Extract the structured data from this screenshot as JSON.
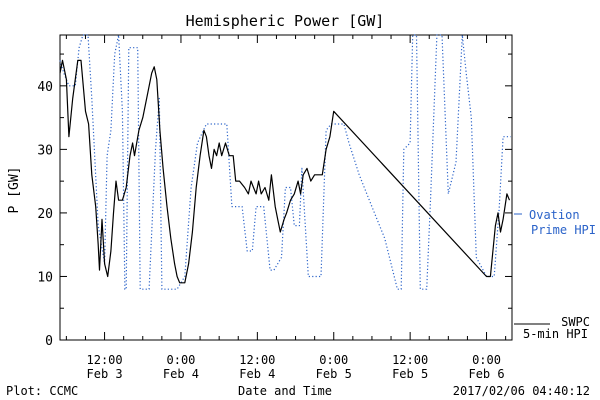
{
  "chart_data": {
    "type": "line",
    "title": "Hemispheric Power [GW]",
    "xlabel": "Date and Time",
    "ylabel": "P [GW]",
    "ylim": [
      0,
      48
    ],
    "xlim_hours": [
      -19,
      52
    ],
    "y_ticks": [
      0,
      10,
      20,
      30,
      40
    ],
    "x_ticks": [
      {
        "hour": -12,
        "time": "12:00",
        "date": "Feb 3"
      },
      {
        "hour": 0,
        "time": "0:00",
        "date": "Feb 4"
      },
      {
        "hour": 12,
        "time": "12:00",
        "date": "Feb 4"
      },
      {
        "hour": 24,
        "time": "0:00",
        "date": "Feb 5"
      },
      {
        "hour": 36,
        "time": "12:00",
        "date": "Feb 5"
      },
      {
        "hour": 48,
        "time": "0:00",
        "date": "Feb 6"
      }
    ],
    "series": [
      {
        "name": "SWPC 5-min HPI",
        "label_lines": [
          "SWPC",
          "5-min HPI"
        ],
        "color": "#000000",
        "style": "solid",
        "points": [
          [
            -19,
            42
          ],
          [
            -18.6,
            44
          ],
          [
            -18,
            41
          ],
          [
            -17.6,
            32
          ],
          [
            -17,
            38
          ],
          [
            -16.2,
            44
          ],
          [
            -15.7,
            44
          ],
          [
            -15,
            36
          ],
          [
            -14.5,
            34
          ],
          [
            -14,
            26
          ],
          [
            -13.4,
            21
          ],
          [
            -13,
            15
          ],
          [
            -12.8,
            11
          ],
          [
            -12.4,
            19
          ],
          [
            -12,
            12
          ],
          [
            -11.5,
            10
          ],
          [
            -11,
            14
          ],
          [
            -10.6,
            20
          ],
          [
            -10.2,
            25
          ],
          [
            -9.8,
            22
          ],
          [
            -9.2,
            22
          ],
          [
            -8.6,
            24
          ],
          [
            -8,
            29
          ],
          [
            -7.6,
            31
          ],
          [
            -7.3,
            29
          ],
          [
            -6.6,
            33
          ],
          [
            -6,
            35
          ],
          [
            -5.2,
            39
          ],
          [
            -4.6,
            42
          ],
          [
            -4.2,
            43
          ],
          [
            -3.8,
            41
          ],
          [
            -3.3,
            33
          ],
          [
            -2.8,
            27
          ],
          [
            -2.2,
            21
          ],
          [
            -1.6,
            16
          ],
          [
            -1,
            12
          ],
          [
            -0.6,
            10
          ],
          [
            -0.2,
            9
          ],
          [
            0.6,
            9
          ],
          [
            1.2,
            12
          ],
          [
            1.8,
            17
          ],
          [
            2.4,
            24
          ],
          [
            3,
            29
          ],
          [
            3.6,
            33
          ],
          [
            4,
            32
          ],
          [
            4.4,
            29
          ],
          [
            4.8,
            27
          ],
          [
            5.2,
            30
          ],
          [
            5.6,
            29
          ],
          [
            6,
            31
          ],
          [
            6.4,
            29
          ],
          [
            7,
            31
          ],
          [
            7.6,
            29
          ],
          [
            8.2,
            29
          ],
          [
            8.6,
            25
          ],
          [
            9.2,
            25
          ],
          [
            10,
            24
          ],
          [
            10.6,
            23
          ],
          [
            11,
            25
          ],
          [
            11.4,
            24
          ],
          [
            11.8,
            23
          ],
          [
            12.2,
            25
          ],
          [
            12.6,
            23
          ],
          [
            13.2,
            24
          ],
          [
            13.8,
            22
          ],
          [
            14.2,
            26
          ],
          [
            14.8,
            21
          ],
          [
            15.2,
            19
          ],
          [
            15.6,
            17
          ],
          [
            16.2,
            19
          ],
          [
            16.6,
            20
          ],
          [
            17.2,
            22
          ],
          [
            17.8,
            23
          ],
          [
            18.4,
            25
          ],
          [
            18.8,
            23
          ],
          [
            19.2,
            26
          ],
          [
            19.8,
            27
          ],
          [
            20.4,
            25
          ],
          [
            21,
            26
          ],
          [
            21.6,
            26
          ],
          [
            22.2,
            26
          ],
          [
            22.8,
            30
          ],
          [
            23.4,
            32
          ],
          [
            24,
            36
          ],
          [
            48,
            10
          ],
          [
            48.6,
            10
          ],
          [
            49,
            14
          ],
          [
            49.4,
            18
          ],
          [
            49.8,
            20
          ],
          [
            50.2,
            17
          ],
          [
            50.6,
            19
          ],
          [
            51.2,
            23
          ],
          [
            51.6,
            22
          ]
        ]
      },
      {
        "name": "Ovation Prime HPI",
        "label_lines": [
          "Ovation",
          "Prime HPI"
        ],
        "color": "#2b63c9",
        "style": "dotted",
        "points": [
          [
            -19,
            44
          ],
          [
            -18.4,
            42
          ],
          [
            -17.6,
            40
          ],
          [
            -16.6,
            40
          ],
          [
            -16,
            46
          ],
          [
            -15.4,
            48
          ],
          [
            -14.6,
            48
          ],
          [
            -14,
            38
          ],
          [
            -13,
            18
          ],
          [
            -12,
            12
          ],
          [
            -11.6,
            29
          ],
          [
            -11,
            33
          ],
          [
            -10.4,
            45
          ],
          [
            -9.8,
            48
          ],
          [
            -9.2,
            36
          ],
          [
            -8.8,
            8
          ],
          [
            -8.6,
            8
          ],
          [
            -8.2,
            46
          ],
          [
            -6.8,
            46
          ],
          [
            -6.4,
            8
          ],
          [
            -5,
            8
          ],
          [
            -4,
            30
          ],
          [
            -3.4,
            38
          ],
          [
            -3,
            8
          ],
          [
            -0.6,
            8
          ],
          [
            0.6,
            10
          ],
          [
            1.6,
            24
          ],
          [
            2.6,
            31
          ],
          [
            4,
            34
          ],
          [
            5,
            34
          ],
          [
            6,
            34
          ],
          [
            7.2,
            34
          ],
          [
            8,
            21
          ],
          [
            9.6,
            21
          ],
          [
            10.4,
            14
          ],
          [
            11.2,
            14
          ],
          [
            11.8,
            21
          ],
          [
            13,
            21
          ],
          [
            14,
            11
          ],
          [
            14.6,
            11
          ],
          [
            15.2,
            12
          ],
          [
            15.8,
            13
          ],
          [
            16.4,
            24
          ],
          [
            17.2,
            24
          ],
          [
            17.8,
            18
          ],
          [
            18.6,
            18
          ],
          [
            19,
            27
          ],
          [
            20,
            10
          ],
          [
            22,
            10
          ],
          [
            22.8,
            33
          ],
          [
            23.6,
            34
          ],
          [
            25.6,
            34
          ],
          [
            26.4,
            31
          ],
          [
            28,
            26
          ],
          [
            30,
            21
          ],
          [
            32,
            16
          ],
          [
            34,
            8
          ],
          [
            34.6,
            8
          ],
          [
            35,
            30
          ],
          [
            36,
            31
          ],
          [
            36.4,
            48
          ],
          [
            37,
            48
          ],
          [
            37.6,
            8
          ],
          [
            38.6,
            8
          ],
          [
            39.2,
            22
          ],
          [
            40.2,
            48
          ],
          [
            41,
            48
          ],
          [
            42,
            23
          ],
          [
            43.2,
            28
          ],
          [
            44.2,
            48
          ],
          [
            44.8,
            42
          ],
          [
            45.6,
            35
          ],
          [
            46.4,
            13
          ],
          [
            48,
            10
          ],
          [
            49.2,
            10
          ],
          [
            50,
            21
          ],
          [
            50.6,
            32
          ],
          [
            51.8,
            32
          ]
        ]
      }
    ],
    "grid": false,
    "legend": "right side, beside the plot"
  },
  "footer": {
    "left": "Plot: CCMC",
    "center": "Date and Time",
    "right": "2017/02/06 04:40:12"
  }
}
